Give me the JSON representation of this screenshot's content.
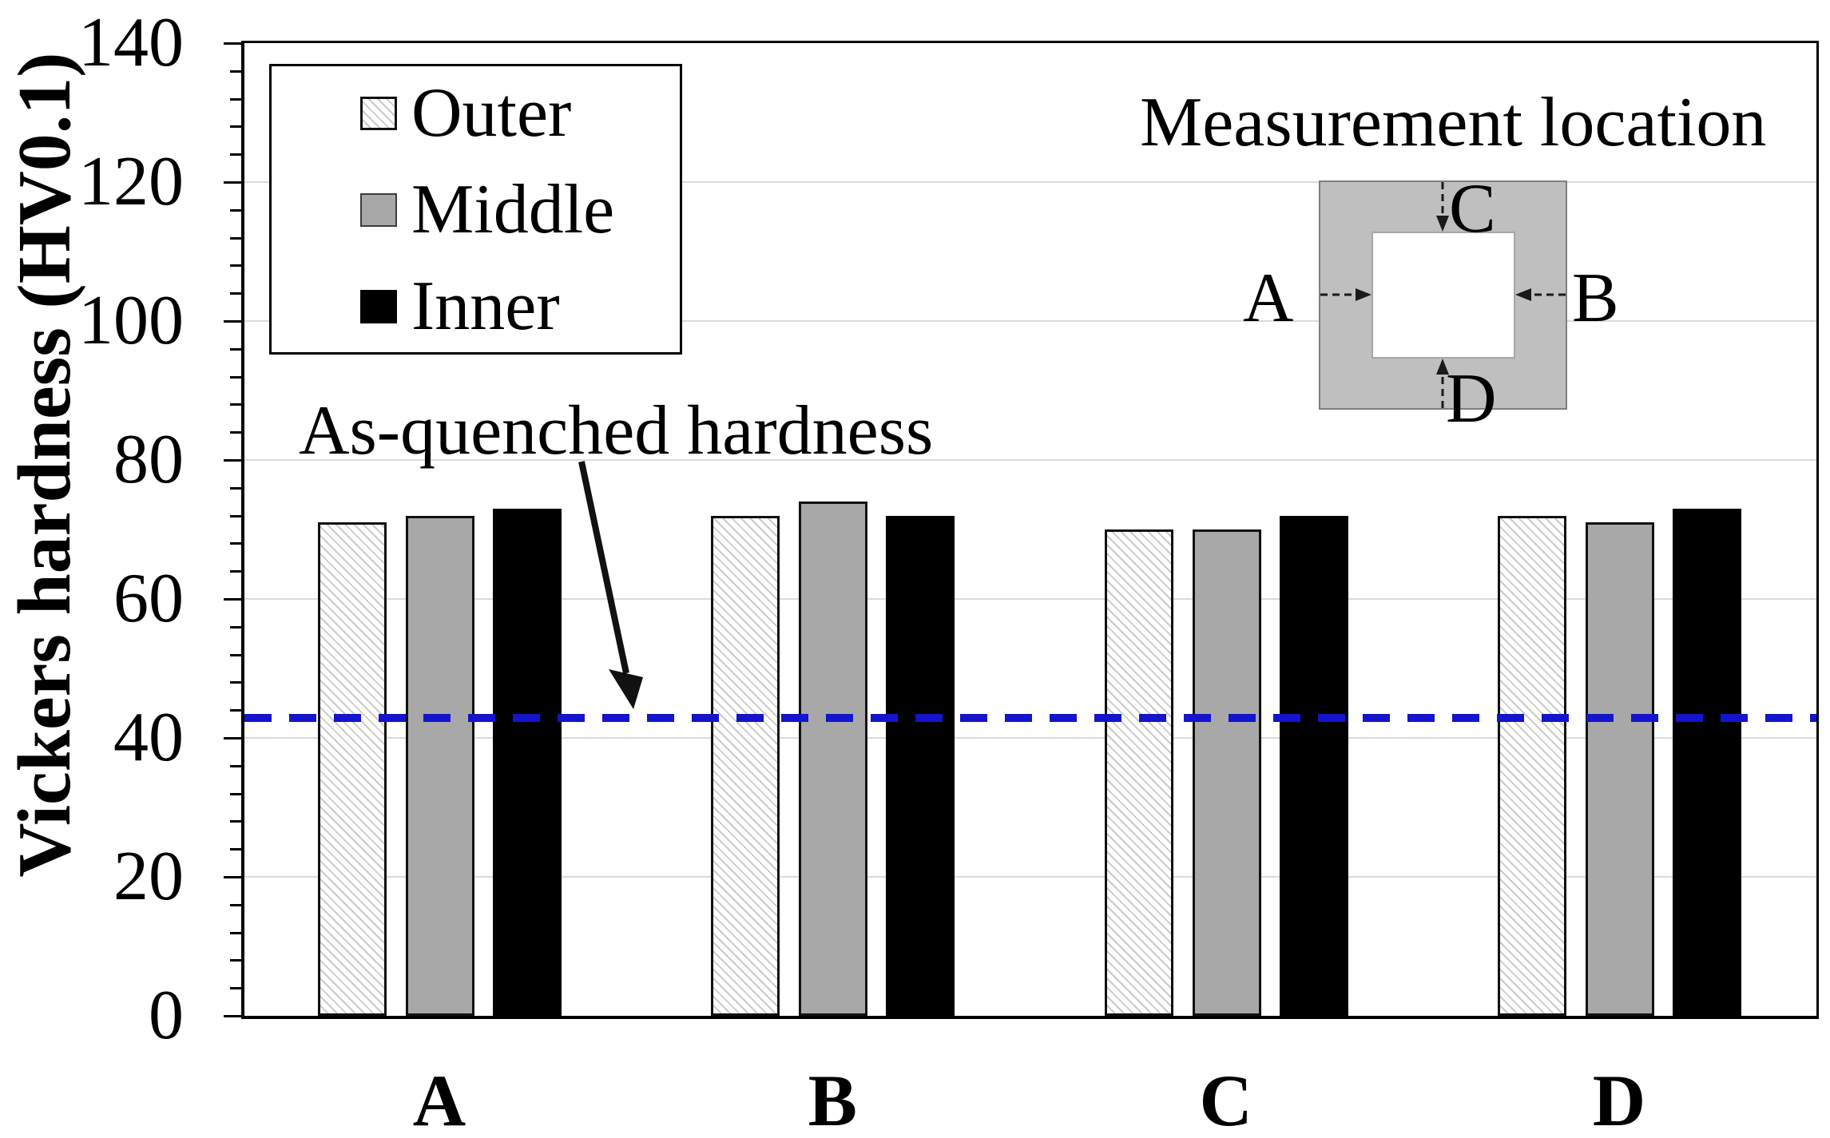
{
  "chart_data": {
    "type": "bar",
    "title": "",
    "categories": [
      "A",
      "B",
      "C",
      "D"
    ],
    "series": [
      {
        "name": "Outer",
        "style": "hatched",
        "values": [
          71,
          72,
          70,
          72
        ]
      },
      {
        "name": "Middle",
        "style": "gray",
        "values": [
          72,
          74,
          70,
          71
        ]
      },
      {
        "name": "Inner",
        "style": "black",
        "values": [
          73,
          72,
          72,
          73
        ]
      }
    ],
    "xlabel": "",
    "ylabel": "Vickers hardness (HV0.1)",
    "ylim": [
      0,
      140
    ],
    "yticks": [
      0,
      20,
      40,
      60,
      80,
      100,
      120,
      140
    ],
    "minor_tick_unit": 4,
    "grid": "horizontal major gridlines",
    "legend_position": "top-left inside plot",
    "reference_line": {
      "label": "As-quenched hardness",
      "value": 43,
      "style": "dashed",
      "color": "#1414cc"
    }
  },
  "legend": {
    "items": [
      {
        "label": "Outer",
        "swatch": "white-diagonal-hatch"
      },
      {
        "label": "Middle",
        "swatch": "gray"
      },
      {
        "label": "Inner",
        "swatch": "black"
      }
    ]
  },
  "annotation": {
    "text": "As-quenched hardness",
    "arrow": "points down-right to dashed reference line"
  },
  "inset": {
    "title": "Measurement location",
    "description": "gray square cross-section with white inner hole",
    "labels": {
      "left": "A",
      "right": "B",
      "top": "C",
      "bottom": "D"
    }
  },
  "colors": {
    "reference_line_blue": "#1414cc",
    "bar_gray": "#a8a8a8",
    "bar_black": "#000000",
    "hatch_line_gray": "#cbcbcb",
    "inset_body_gray": "#bfbfbf",
    "gridline_gray": "#dadada",
    "axis_black": "#000000"
  }
}
